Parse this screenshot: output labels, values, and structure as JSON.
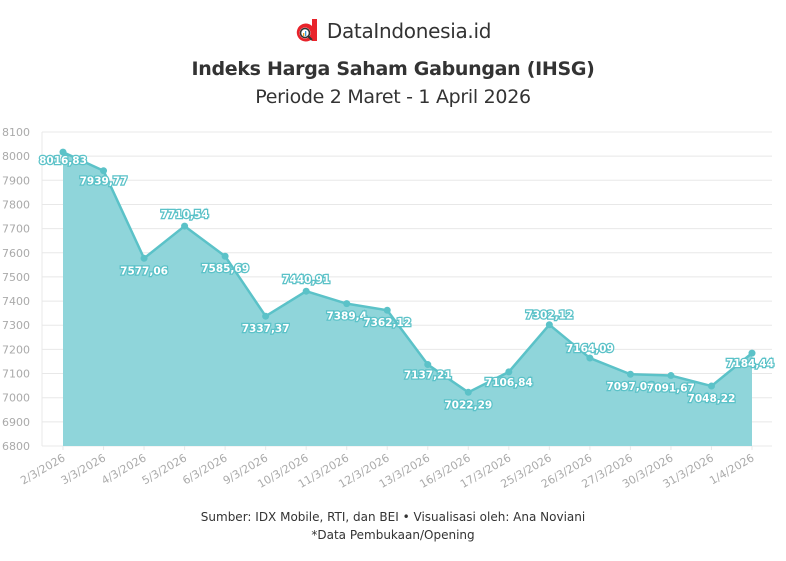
{
  "brand": {
    "name": "DataIndonesia.id",
    "logo_icon": "data-indonesia-logo-icon",
    "logo_color": "#e8232b"
  },
  "header": {
    "title": "Indeks Harga Saham Gabungan (IHSG)",
    "subtitle": "Periode 2 Maret - 1 April 2026"
  },
  "footer": {
    "source": "Sumber: IDX Mobile, RTI, dan BEI • Visualisasi oleh: Ana Noviani",
    "note": "*Data Pembukaan/Opening"
  },
  "colors": {
    "line": "#5bc2c8",
    "area": "#8fd5da",
    "grid": "#e8e8e8",
    "axis_text": "#aaaaaa"
  },
  "chart_data": {
    "type": "area",
    "title": "Indeks Harga Saham Gabungan (IHSG)",
    "subtitle": "Periode 2 Maret - 1 April 2026",
    "xlabel": "",
    "ylabel": "",
    "ylim": [
      6800,
      8100
    ],
    "yticks": [
      6800,
      6900,
      7000,
      7100,
      7200,
      7300,
      7400,
      7500,
      7600,
      7700,
      7800,
      7900,
      8000,
      8100
    ],
    "grid": true,
    "legend": null,
    "categories": [
      "2/3/2026",
      "3/3/2026",
      "4/3/2026",
      "5/3/2026",
      "6/3/2026",
      "9/3/2026",
      "10/3/2026",
      "11/3/2026",
      "12/3/2026",
      "13/3/2026",
      "16/3/2026",
      "17/3/2026",
      "25/3/2026",
      "26/3/2026",
      "27/3/2026",
      "30/3/2026",
      "31/3/2026",
      "1/4/2026"
    ],
    "values": [
      8016.83,
      7939.77,
      7577.06,
      7710.54,
      7585.69,
      7337.37,
      7440.91,
      7389.4,
      7362.12,
      7137.21,
      7022.29,
      7106.84,
      7302.12,
      7164.09,
      7097.06,
      7091.67,
      7048.22,
      7184.44
    ],
    "data_labels": [
      "8016,83",
      "7939,77",
      "7577,06",
      "7710,54",
      "7585,69",
      "7337,37",
      "7440,91",
      "7389,4",
      "7362,12",
      "7137,21",
      "7022,29",
      "7106,84",
      "7302,12",
      "7164,09",
      "7097,06",
      "7091,67",
      "7048,22",
      "7184,44"
    ]
  }
}
